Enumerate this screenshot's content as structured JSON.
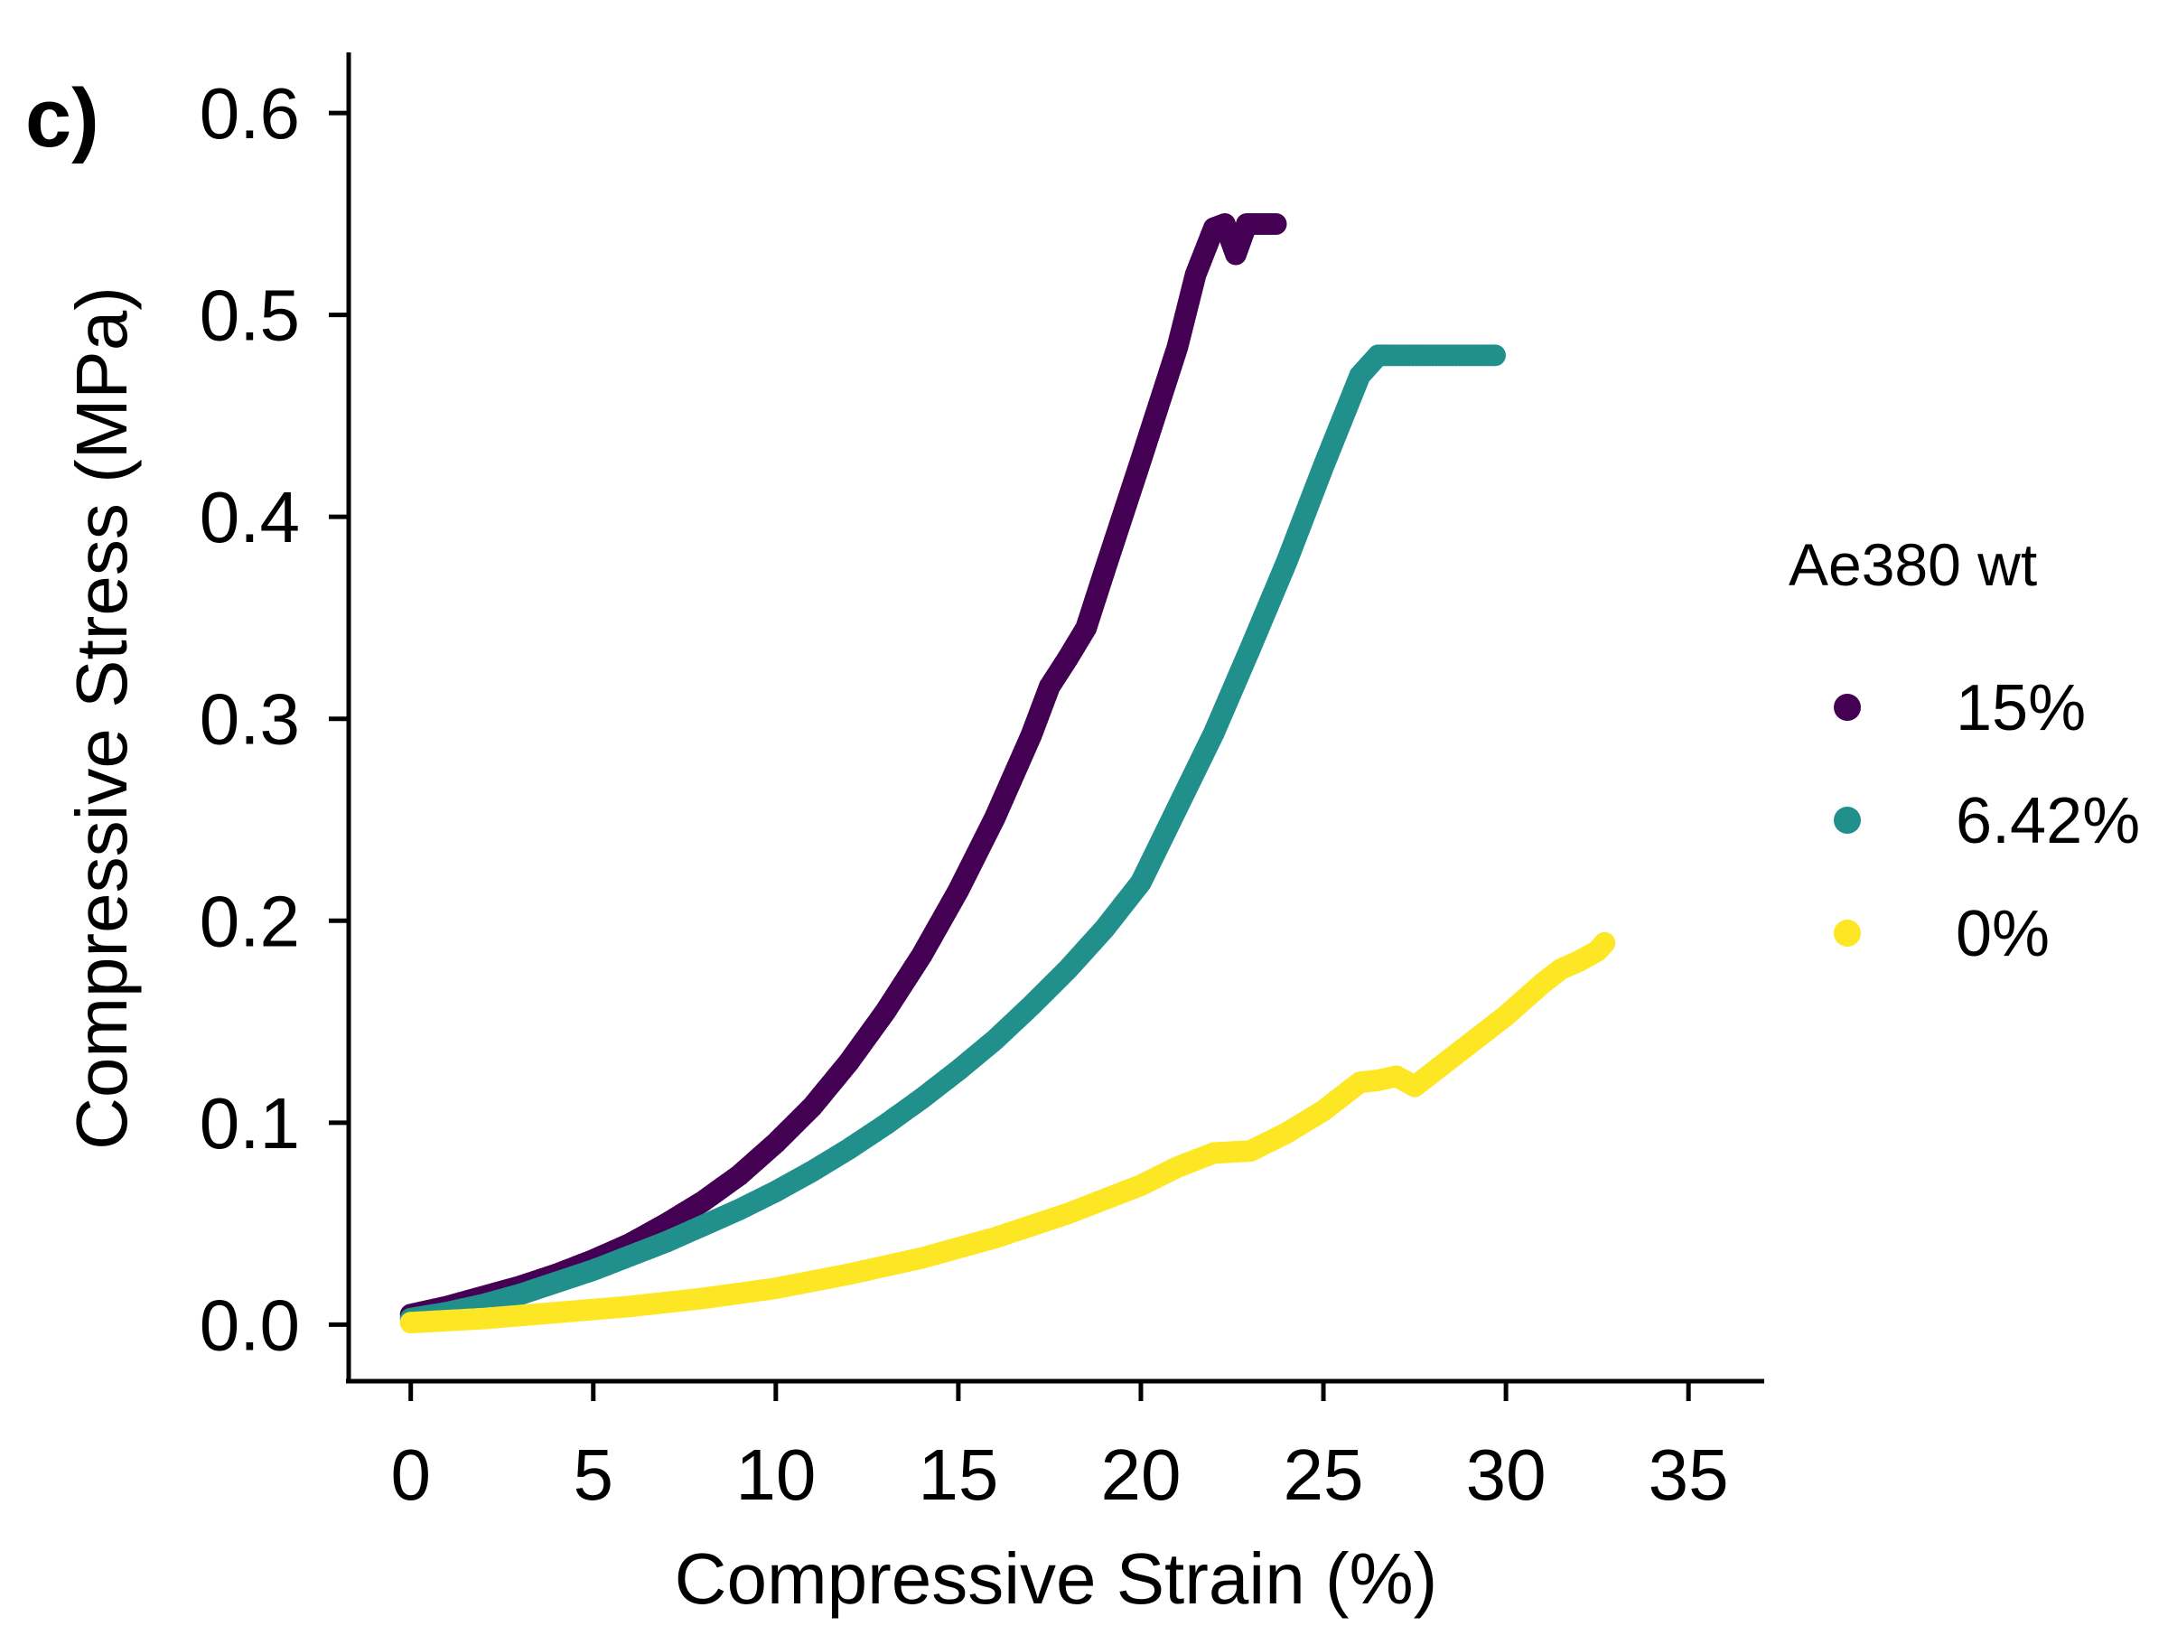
{
  "panel_label": "c)",
  "chart_data": {
    "type": "scatter",
    "xlabel": "Compressive Strain (%)",
    "ylabel": "Compressive Stress (MPa)",
    "xlim": [
      -1.7,
      37
    ],
    "ylim": [
      -0.028,
      0.63
    ],
    "xticks": [
      0,
      5,
      10,
      15,
      20,
      25,
      30,
      35
    ],
    "yticks": [
      0.0,
      0.1,
      0.2,
      0.3,
      0.4,
      0.5,
      0.6
    ],
    "ytick_labels": [
      "0.0",
      "0.1",
      "0.2",
      "0.3",
      "0.4",
      "0.5",
      "0.6"
    ],
    "grid": false,
    "legend": {
      "title": "Ae380 wt",
      "placement": "right"
    },
    "series": [
      {
        "name": "15%",
        "color": "#440154",
        "x": [
          0,
          1,
          2,
          3,
          4,
          5,
          6,
          7,
          8,
          9,
          10,
          11,
          12,
          13,
          14,
          15,
          16,
          17,
          17.5,
          18,
          18.5,
          19,
          20,
          21,
          21.5,
          22,
          22.3,
          22.6,
          22.9,
          23.2,
          23.7
        ],
        "y": [
          0.005,
          0.009,
          0.014,
          0.019,
          0.025,
          0.032,
          0.04,
          0.05,
          0.061,
          0.074,
          0.09,
          0.108,
          0.13,
          0.155,
          0.183,
          0.215,
          0.251,
          0.292,
          0.316,
          0.33,
          0.345,
          0.373,
          0.428,
          0.484,
          0.52,
          0.543,
          0.545,
          0.53,
          0.545,
          0.545,
          0.545
        ]
      },
      {
        "name": "6.42%",
        "color": "#21908C",
        "x": [
          0,
          1,
          2,
          3,
          4,
          5,
          6,
          7,
          8,
          9,
          10,
          11,
          12,
          13,
          14,
          15,
          16,
          17,
          18,
          19,
          20,
          21,
          22,
          23,
          24,
          25,
          26,
          26.5,
          27,
          28,
          29,
          29.7
        ],
        "y": [
          0.003,
          0.006,
          0.01,
          0.015,
          0.021,
          0.027,
          0.034,
          0.041,
          0.049,
          0.057,
          0.066,
          0.076,
          0.087,
          0.099,
          0.112,
          0.126,
          0.141,
          0.158,
          0.176,
          0.196,
          0.219,
          0.256,
          0.293,
          0.335,
          0.378,
          0.425,
          0.47,
          0.48,
          0.48,
          0.48,
          0.48,
          0.48
        ]
      },
      {
        "name": "0%",
        "color": "#FDE725",
        "x": [
          0,
          2,
          4,
          6,
          8,
          10,
          12,
          14,
          16,
          18,
          19,
          20,
          21,
          22,
          23,
          24,
          25,
          26,
          26.5,
          27,
          27.5,
          28,
          29,
          30,
          31,
          31.5,
          32,
          32.5,
          32.7
        ],
        "y": [
          0.001,
          0.003,
          0.006,
          0.009,
          0.013,
          0.018,
          0.025,
          0.033,
          0.043,
          0.055,
          0.062,
          0.069,
          0.078,
          0.085,
          0.086,
          0.095,
          0.106,
          0.12,
          0.121,
          0.123,
          0.118,
          0.125,
          0.139,
          0.153,
          0.169,
          0.176,
          0.18,
          0.185,
          0.189
        ]
      }
    ]
  }
}
